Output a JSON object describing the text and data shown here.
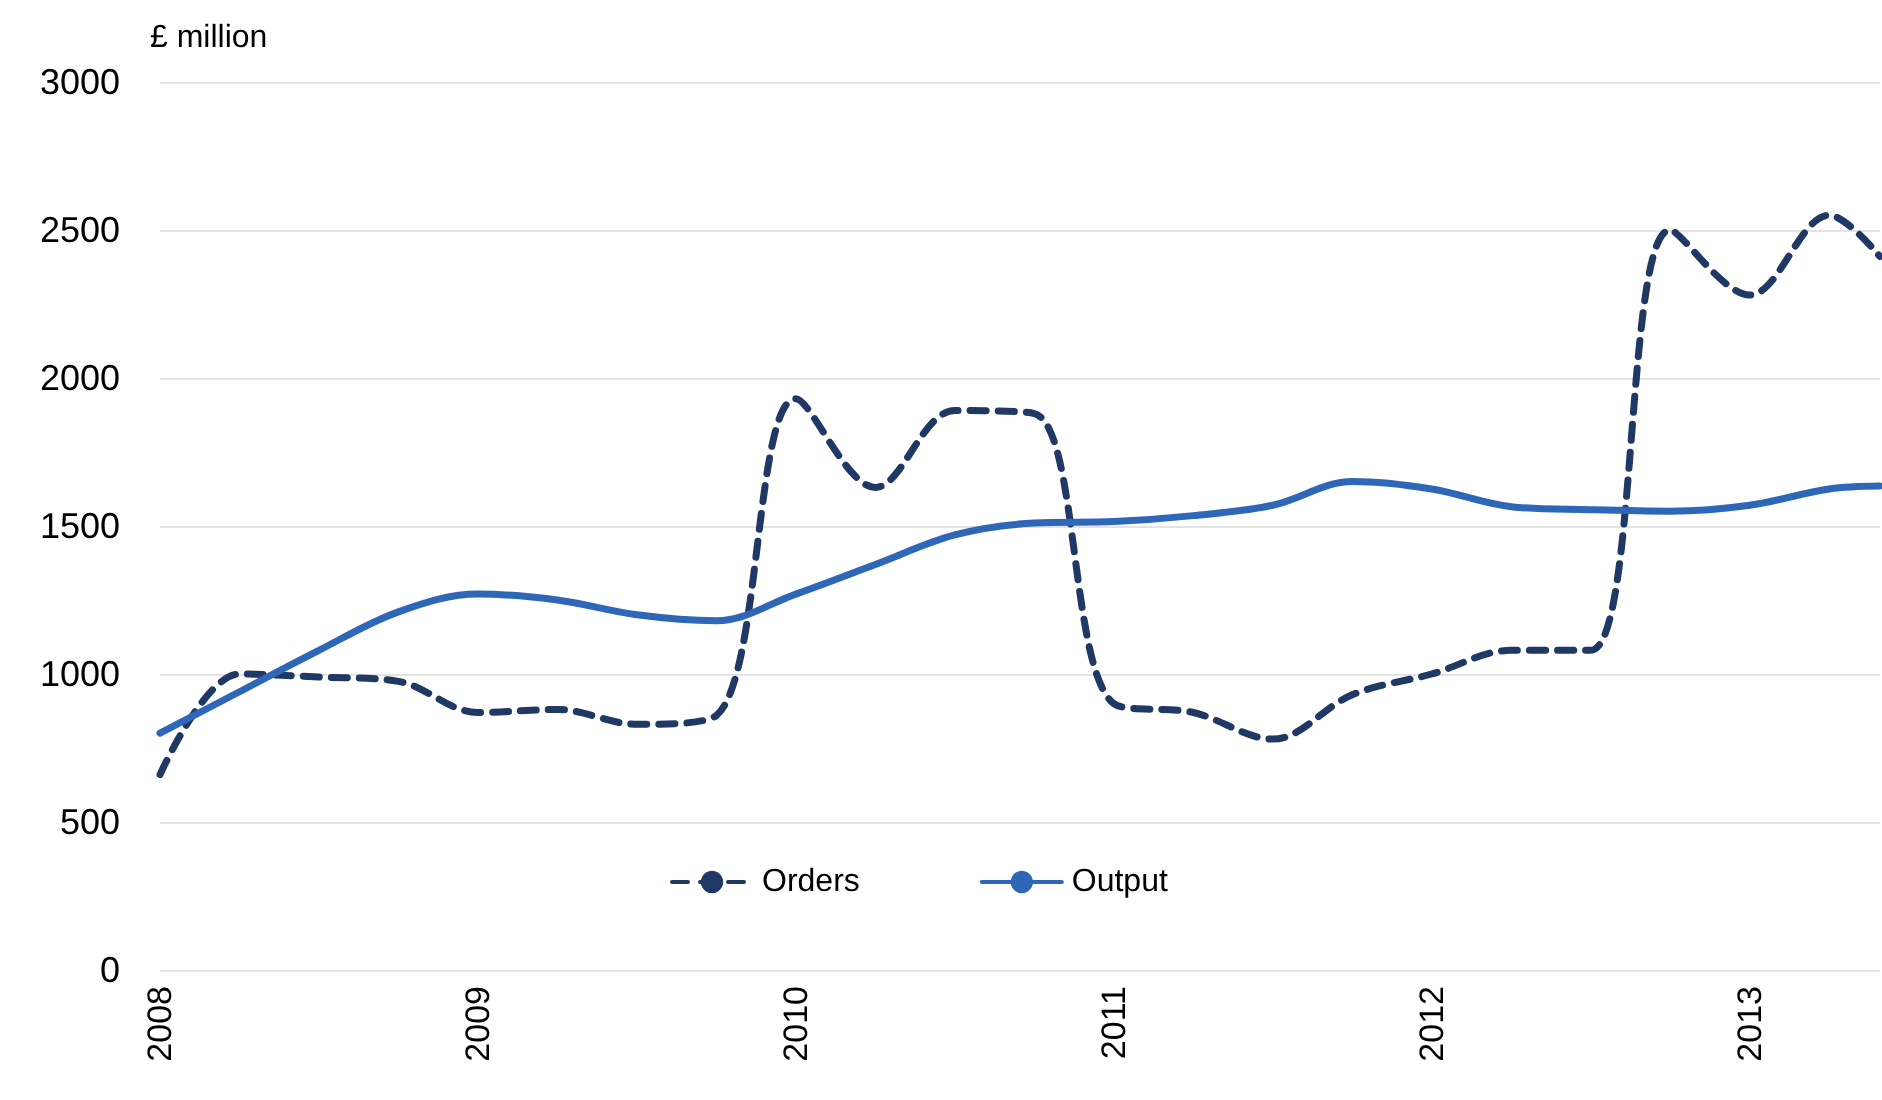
{
  "chart_data": {
    "type": "line",
    "ylabel": "£ million",
    "x": [
      2008,
      2008.25,
      2008.5,
      2008.75,
      2009,
      2009.25,
      2009.5,
      2009.75,
      2010,
      2010.25,
      2010.5,
      2010.75,
      2011,
      2011.25,
      2011.5,
      2011.75,
      2012,
      2012.25,
      2012.5,
      2012.75,
      2013,
      2013.25,
      2013.41
    ],
    "series": [
      {
        "name": "Orders",
        "color": "#1f3864",
        "line_style": "dashed",
        "values": [
          660,
          1000,
          990,
          975,
          870,
          880,
          830,
          860,
          1930,
          1630,
          1890,
          1880,
          900,
          870,
          780,
          930,
          1000,
          1080,
          1080,
          2500,
          2280,
          2550,
          2410
        ]
      },
      {
        "name": "Output",
        "color": "#2e66b8",
        "line_style": "solid",
        "values": [
          800,
          940,
          1080,
          1210,
          1270,
          1250,
          1200,
          1180,
          1270,
          1370,
          1470,
          1510,
          1515,
          1535,
          1570,
          1650,
          1625,
          1565,
          1555,
          1550,
          1570,
          1625,
          1635
        ]
      }
    ],
    "xlim": [
      2008,
      2013.41
    ],
    "xticks": [
      2008,
      2009,
      2010,
      2011,
      2012,
      2013
    ],
    "ylim": [
      0,
      3000
    ],
    "yticks": [
      0,
      500,
      1000,
      1500,
      2000,
      2500,
      3000
    ],
    "grid": "y",
    "legend": "bottom",
    "marker": "none"
  }
}
